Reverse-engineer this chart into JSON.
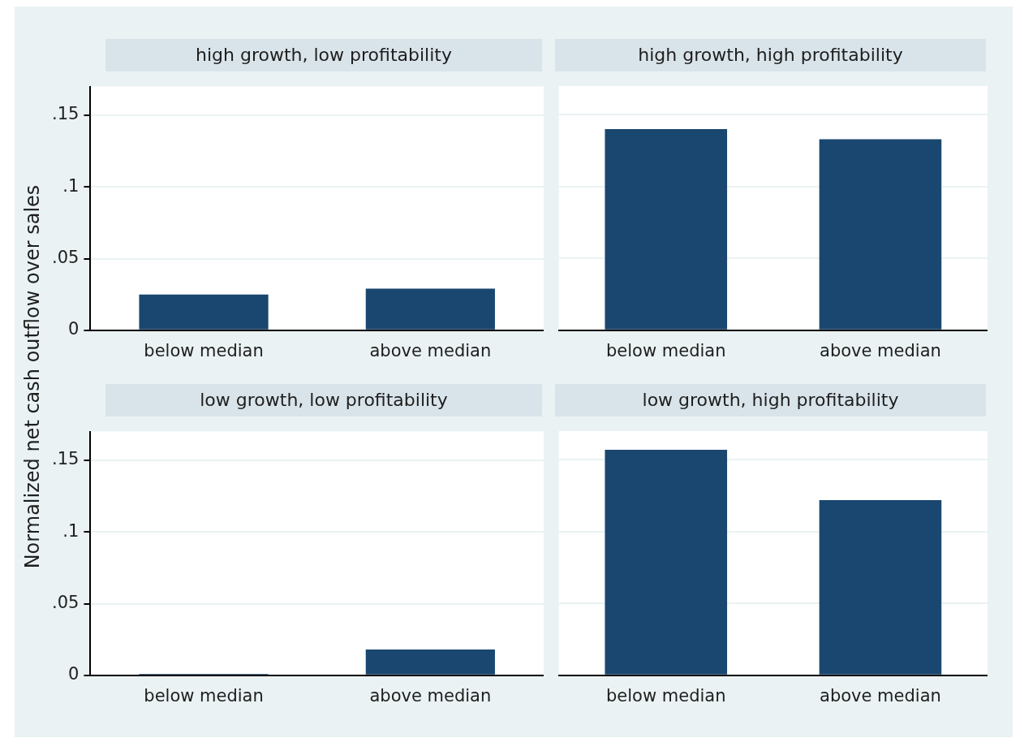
{
  "chart_data": [
    {
      "type": "bar",
      "title": "high growth, low profitability",
      "ylabel": "Normalized net cash outflow over sales",
      "categories": [
        "below median",
        "above median"
      ],
      "values": [
        0.025,
        0.029
      ],
      "color": "#1a476f",
      "ylim": [
        0,
        0.17
      ],
      "yticks": [
        {
          "value": 0,
          "label": "0"
        },
        {
          "value": 0.05,
          "label": ".05"
        },
        {
          "value": 0.1,
          "label": ".1"
        },
        {
          "value": 0.15,
          "label": ".15"
        }
      ],
      "grid": "y"
    },
    {
      "type": "bar",
      "title": "high growth, high profitability",
      "categories": [
        "below median",
        "above median"
      ],
      "values": [
        0.14,
        0.133
      ],
      "color": "#1a476f",
      "ylim": [
        0,
        0.17
      ],
      "yticks": [
        0,
        0.05,
        0.1,
        0.15
      ],
      "grid": "y",
      "tick_labels": "x"
    },
    {
      "type": "bar",
      "title": "low growth, low profitability",
      "categories": [
        "below median",
        "above median"
      ],
      "values": [
        0.001,
        0.018
      ],
      "color": "#1a476f",
      "ylim": [
        0,
        0.17
      ],
      "yticks": [
        {
          "value": 0,
          "label": "0"
        },
        {
          "value": 0.05,
          "label": ".05"
        },
        {
          "value": 0.1,
          "label": ".1"
        },
        {
          "value": 0.15,
          "label": ".15"
        }
      ],
      "grid": "y"
    },
    {
      "type": "bar",
      "title": "low growth, high profitability",
      "categories": [
        "below median",
        "above median"
      ],
      "values": [
        0.157,
        0.122
      ],
      "color": "#1a476f",
      "ylim": [
        0,
        0.17
      ],
      "yticks": [
        0,
        0.05,
        0.1,
        0.15
      ],
      "grid": "y",
      "tick_labels": "x"
    }
  ]
}
